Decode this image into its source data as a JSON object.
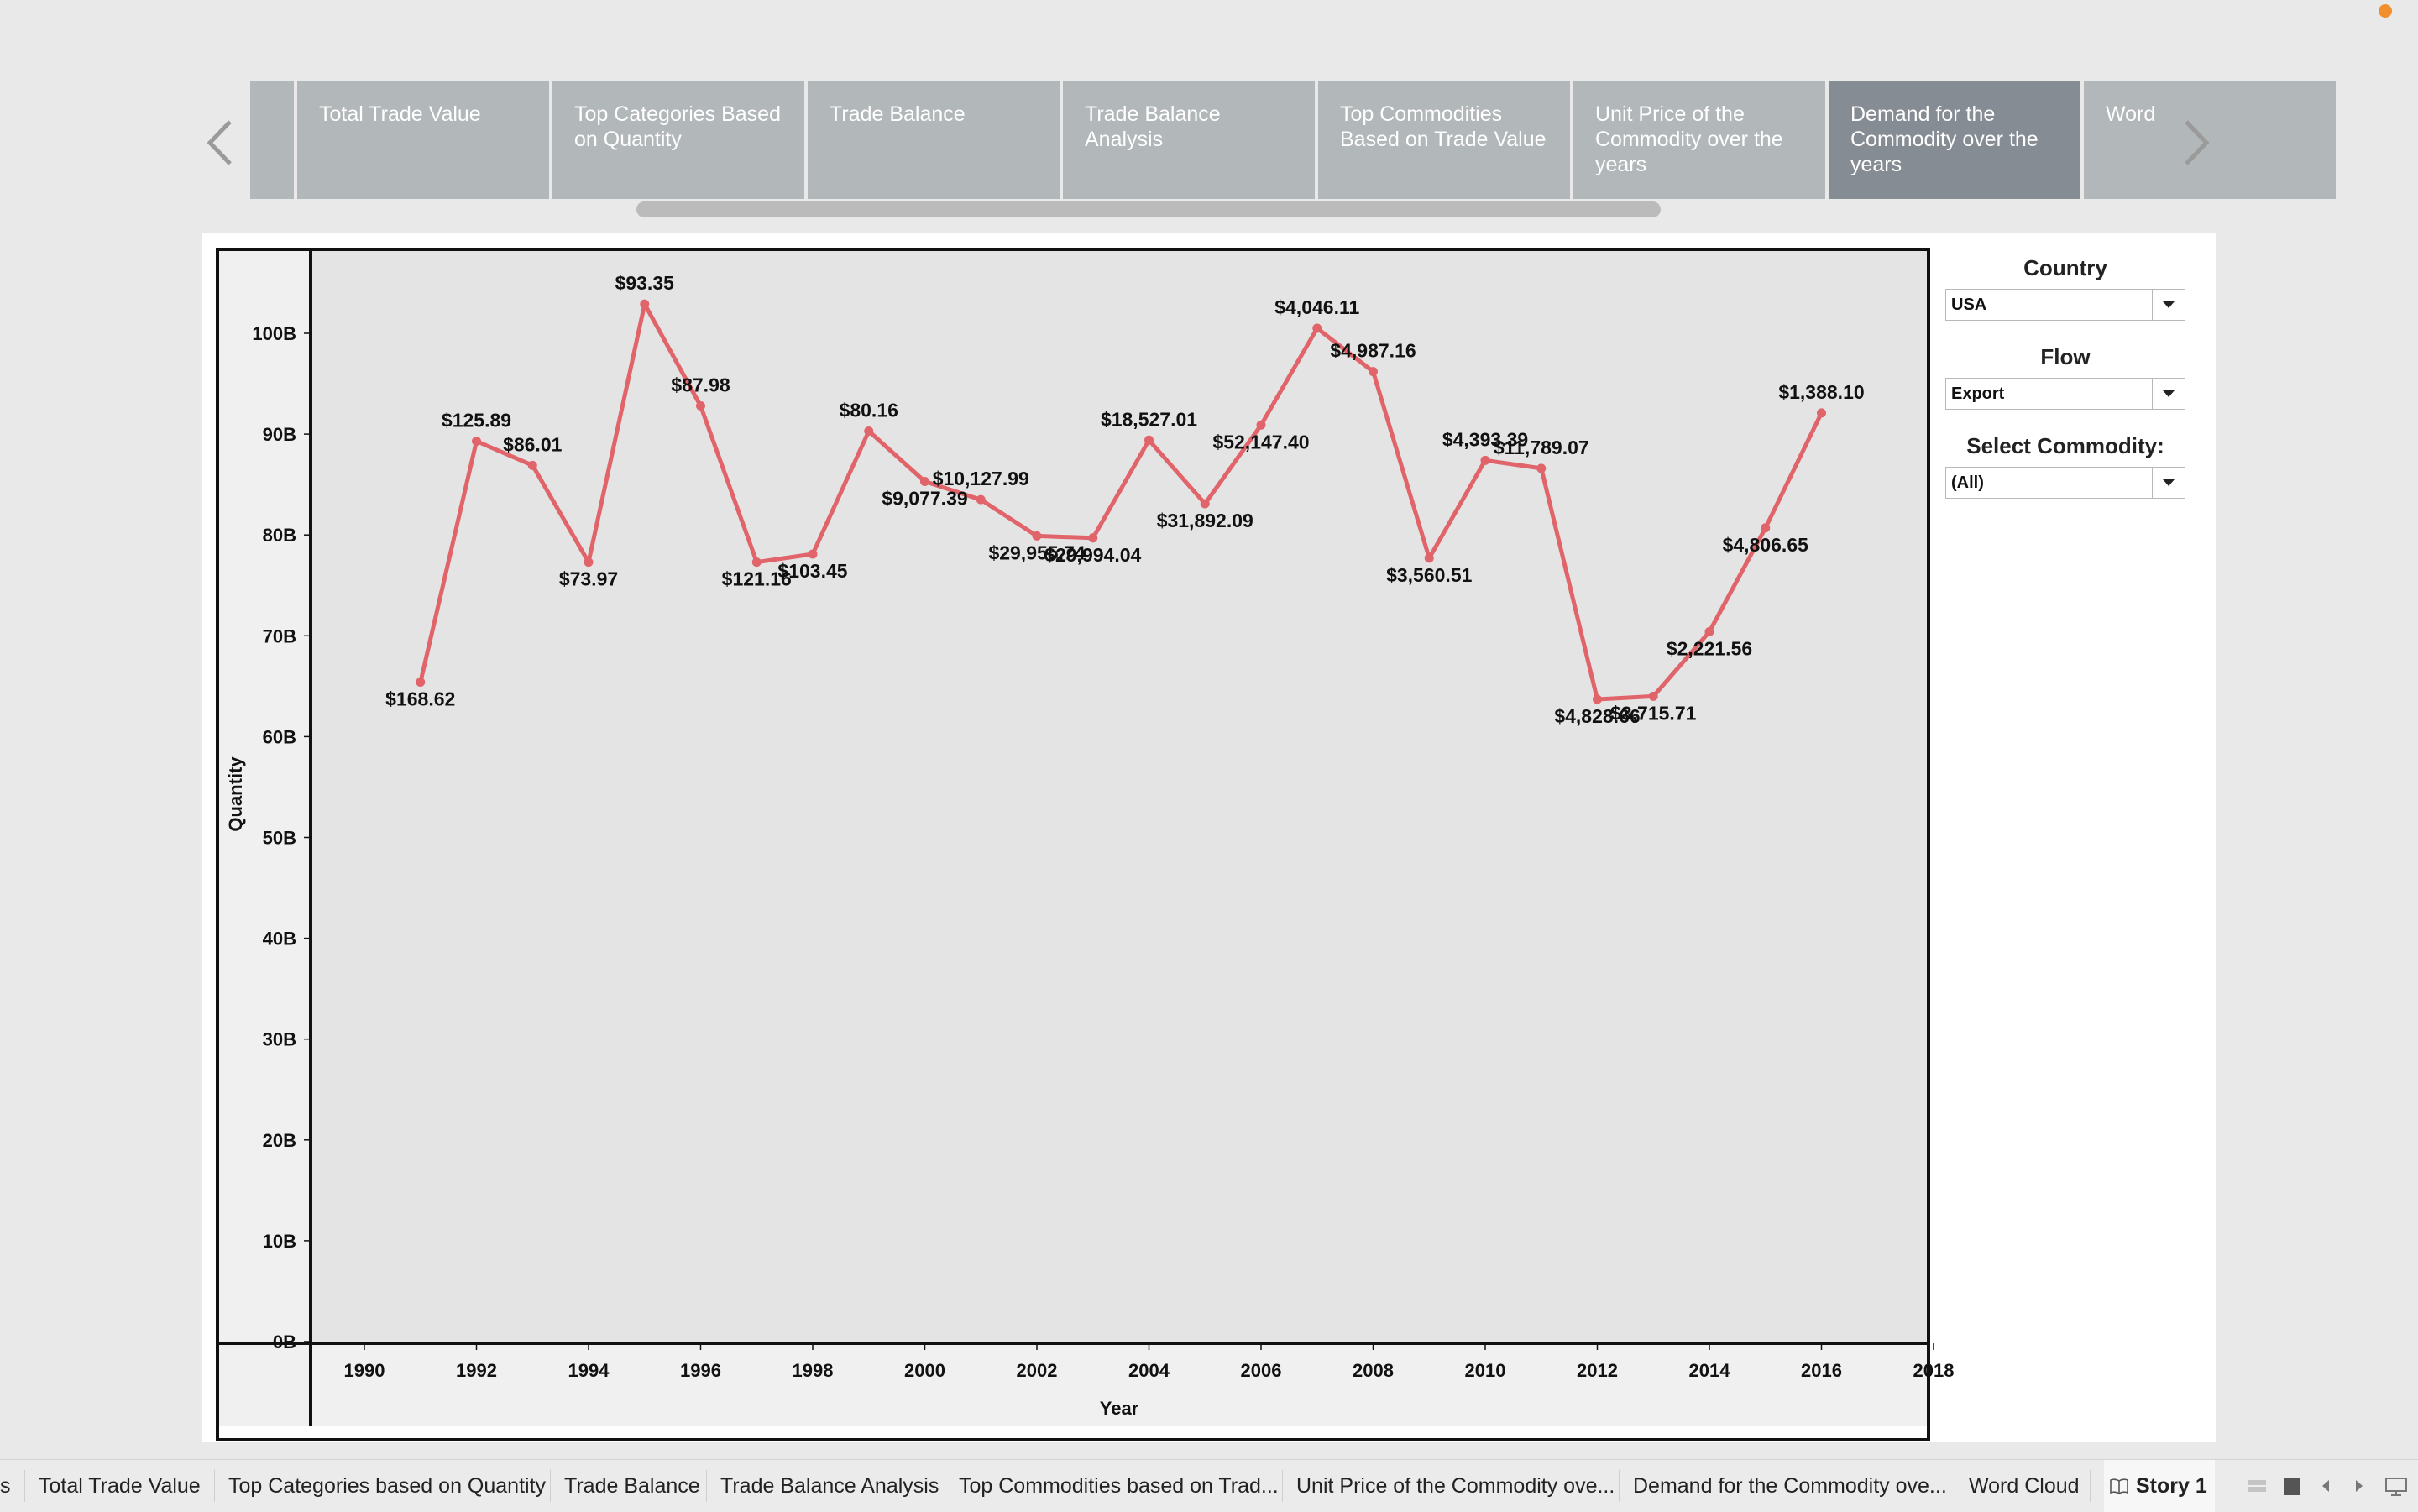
{
  "story": {
    "tabs": [
      {
        "label": "",
        "active": false,
        "stub": true
      },
      {
        "label": "Total Trade Value",
        "active": false
      },
      {
        "label": "Top Categories Based on Quantity",
        "active": false
      },
      {
        "label": "Trade Balance",
        "active": false
      },
      {
        "label": "Trade Balance Analysis",
        "active": false
      },
      {
        "label": "Top Commodities Based on Trade Value",
        "active": false
      },
      {
        "label": "Unit Price of the Commodity over the years",
        "active": false
      },
      {
        "label": "Demand for the Commodity over the years",
        "active": true
      },
      {
        "label": "Word",
        "active": false
      }
    ]
  },
  "filters": {
    "country": {
      "title": "Country",
      "value": "USA"
    },
    "flow": {
      "title": "Flow",
      "value": "Export"
    },
    "commodity": {
      "title": "Select Commodity:",
      "value": "(All)"
    }
  },
  "chart_data": {
    "type": "line",
    "xlabel": "Year",
    "ylabel": "Quantity",
    "x_ticks": [
      "1990",
      "1992",
      "1994",
      "1996",
      "1998",
      "2000",
      "2002",
      "2004",
      "2006",
      "2008",
      "2010",
      "2012",
      "2014",
      "2016",
      "2018"
    ],
    "y_ticks": [
      "0B",
      "10B",
      "20B",
      "30B",
      "40B",
      "50B",
      "60B",
      "70B",
      "80B",
      "90B",
      "100B"
    ],
    "xlim": [
      1989,
      2018
    ],
    "ylim": [
      0,
      108
    ],
    "y_unit": "B",
    "color": "#e06469",
    "grid": false,
    "points": [
      {
        "year": 1991,
        "value": 65.4,
        "label": "$168.62",
        "pos": "below"
      },
      {
        "year": 1992,
        "value": 89.3,
        "label": "$125.89",
        "pos": "above"
      },
      {
        "year": 1993,
        "value": 86.9,
        "label": "$86.01",
        "pos": "above"
      },
      {
        "year": 1994,
        "value": 77.3,
        "label": "$73.97",
        "pos": "below"
      },
      {
        "year": 1995,
        "value": 102.9,
        "label": "$93.35",
        "pos": "above"
      },
      {
        "year": 1996,
        "value": 92.8,
        "label": "$87.98",
        "pos": "above"
      },
      {
        "year": 1997,
        "value": 77.3,
        "label": "$121.16",
        "pos": "below"
      },
      {
        "year": 1998,
        "value": 78.1,
        "label": "$103.45",
        "pos": "below"
      },
      {
        "year": 1999,
        "value": 90.3,
        "label": "$80.16",
        "pos": "above"
      },
      {
        "year": 2000,
        "value": 85.3,
        "label": "$9,077.39",
        "pos": "below"
      },
      {
        "year": 2001,
        "value": 83.5,
        "label": "$10,127.99",
        "pos": "above"
      },
      {
        "year": 2002,
        "value": 79.9,
        "label": "$29,955.74",
        "pos": "below"
      },
      {
        "year": 2003,
        "value": 79.7,
        "label": "$29,994.04",
        "pos": "below"
      },
      {
        "year": 2004,
        "value": 89.4,
        "label": "$18,527.01",
        "pos": "above"
      },
      {
        "year": 2005,
        "value": 83.1,
        "label": "$31,892.09",
        "pos": "below"
      },
      {
        "year": 2006,
        "value": 90.9,
        "label": "$52,147.40",
        "pos": "below"
      },
      {
        "year": 2007,
        "value": 100.5,
        "label": "$4,046.11",
        "pos": "above"
      },
      {
        "year": 2008,
        "value": 96.2,
        "label": "$4,987.16",
        "pos": "above"
      },
      {
        "year": 2009,
        "value": 77.7,
        "label": "$3,560.51",
        "pos": "below"
      },
      {
        "year": 2010,
        "value": 87.4,
        "label": "$4,393.39",
        "pos": "above"
      },
      {
        "year": 2011,
        "value": 86.6,
        "label": "$11,789.07",
        "pos": "above"
      },
      {
        "year": 2012,
        "value": 63.7,
        "label": "$4,828.66",
        "pos": "below"
      },
      {
        "year": 2013,
        "value": 64.0,
        "label": "$3,715.71",
        "pos": "below"
      },
      {
        "year": 2014,
        "value": 70.4,
        "label": "$2,221.56",
        "pos": "below"
      },
      {
        "year": 2015,
        "value": 80.7,
        "label": "$4,806.65",
        "pos": "below"
      },
      {
        "year": 2016,
        "value": 92.1,
        "label": "$1,388.10",
        "pos": "above"
      }
    ]
  },
  "sheets": [
    {
      "label": "s",
      "active": false
    },
    {
      "label": "Total Trade Value",
      "active": false
    },
    {
      "label": "Top Categories based on Quantity",
      "active": false
    },
    {
      "label": "Trade Balance",
      "active": false
    },
    {
      "label": "Trade Balance Analysis",
      "active": false
    },
    {
      "label": "Top Commodities based on Trad...",
      "active": false
    },
    {
      "label": "Unit Price of the Commodity ove...",
      "active": false
    },
    {
      "label": "Demand for the Commodity ove...",
      "active": false
    },
    {
      "label": "Word Cloud",
      "active": false
    },
    {
      "label": "Story 1",
      "active": true,
      "icon": "book-icon"
    }
  ]
}
